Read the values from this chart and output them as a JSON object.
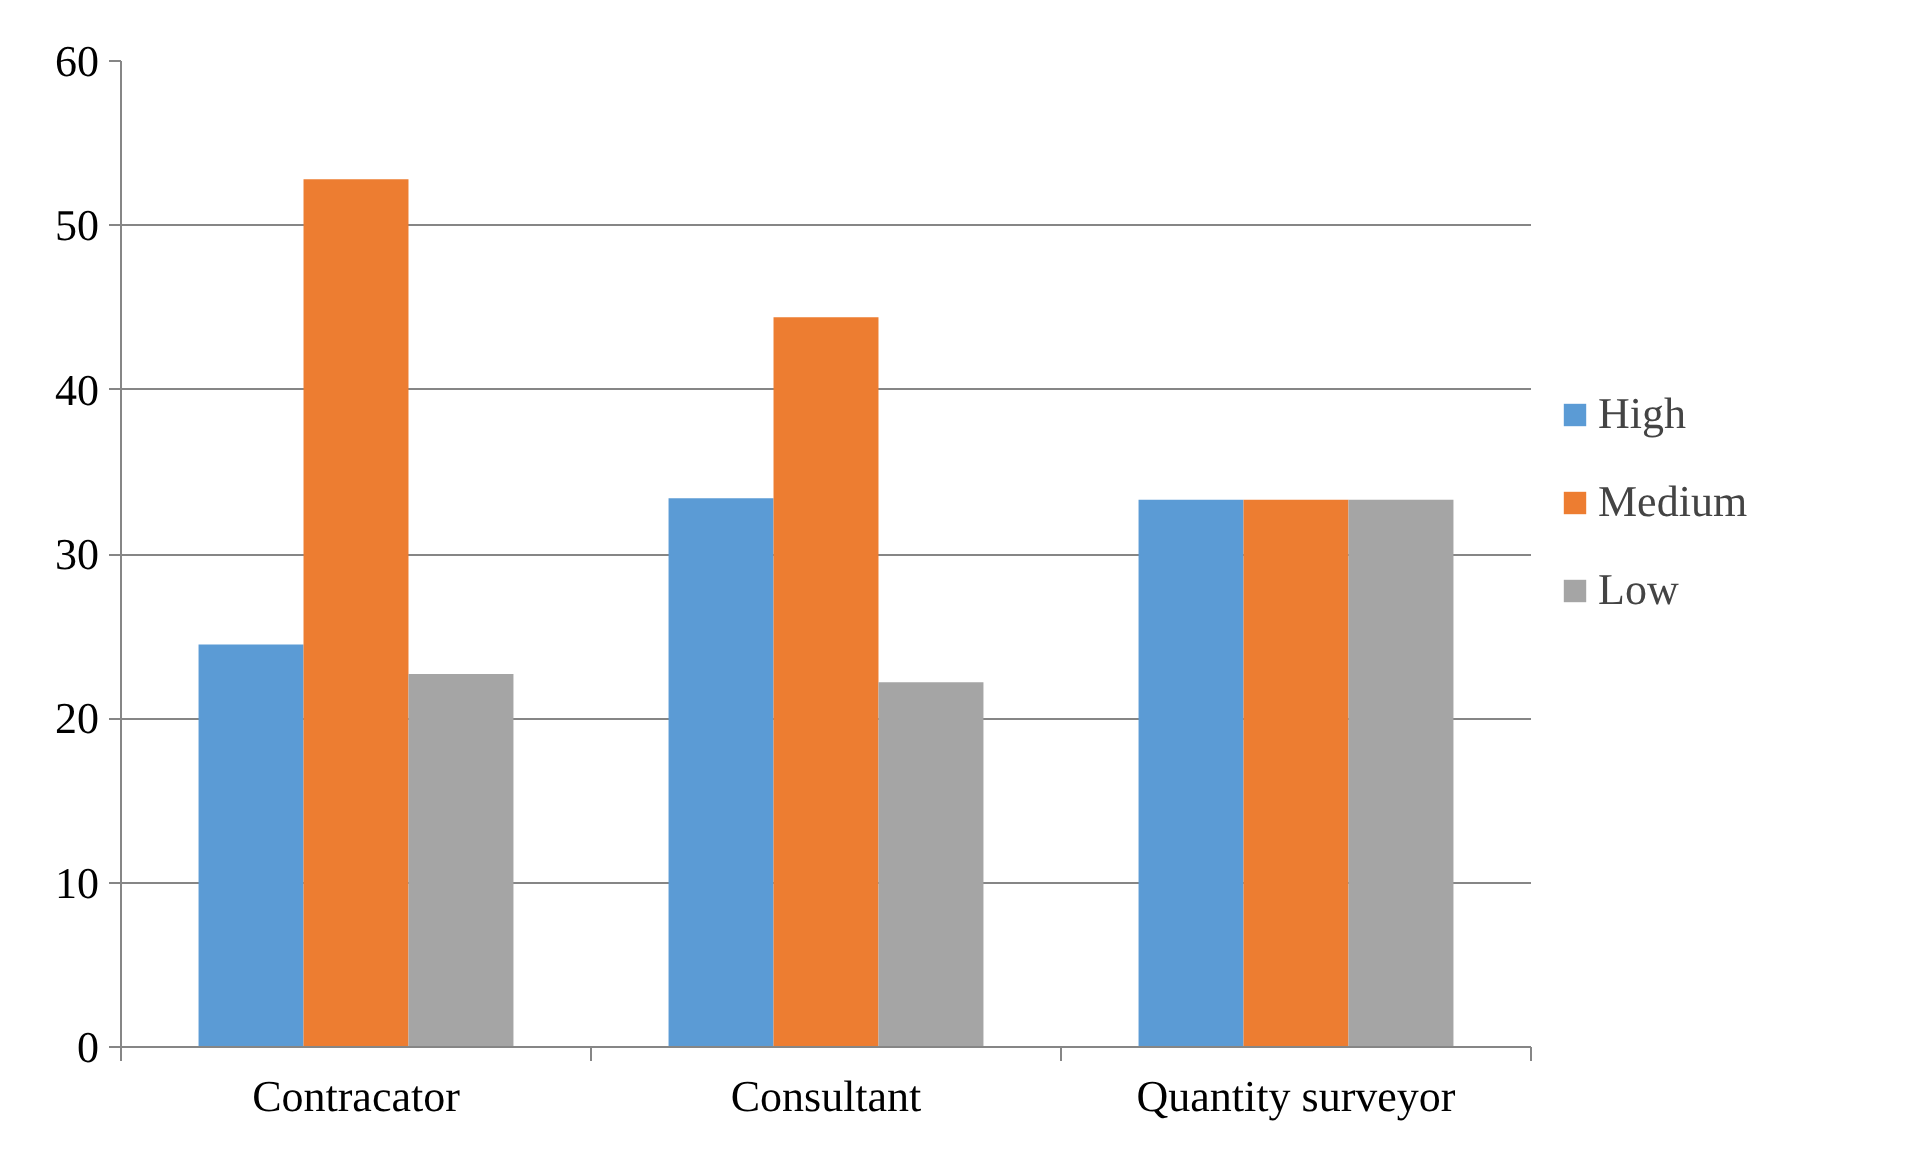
{
  "chart_data": {
    "type": "bar",
    "categories": [
      "Contracator",
      "Consultant",
      "Quantity surveyor"
    ],
    "series": [
      {
        "name": "High",
        "color": "#5b9bd5",
        "values": [
          24.5,
          33.4,
          33.3
        ]
      },
      {
        "name": "Medium",
        "color": "#ed7d31",
        "values": [
          52.8,
          44.4,
          33.3
        ]
      },
      {
        "name": "Low",
        "color": "#a5a5a5",
        "values": [
          22.7,
          22.2,
          33.3
        ]
      }
    ],
    "ylim": [
      0,
      60
    ],
    "yticks": [
      0,
      10,
      20,
      30,
      40,
      50,
      60
    ],
    "grid": "y",
    "legend": "right"
  }
}
